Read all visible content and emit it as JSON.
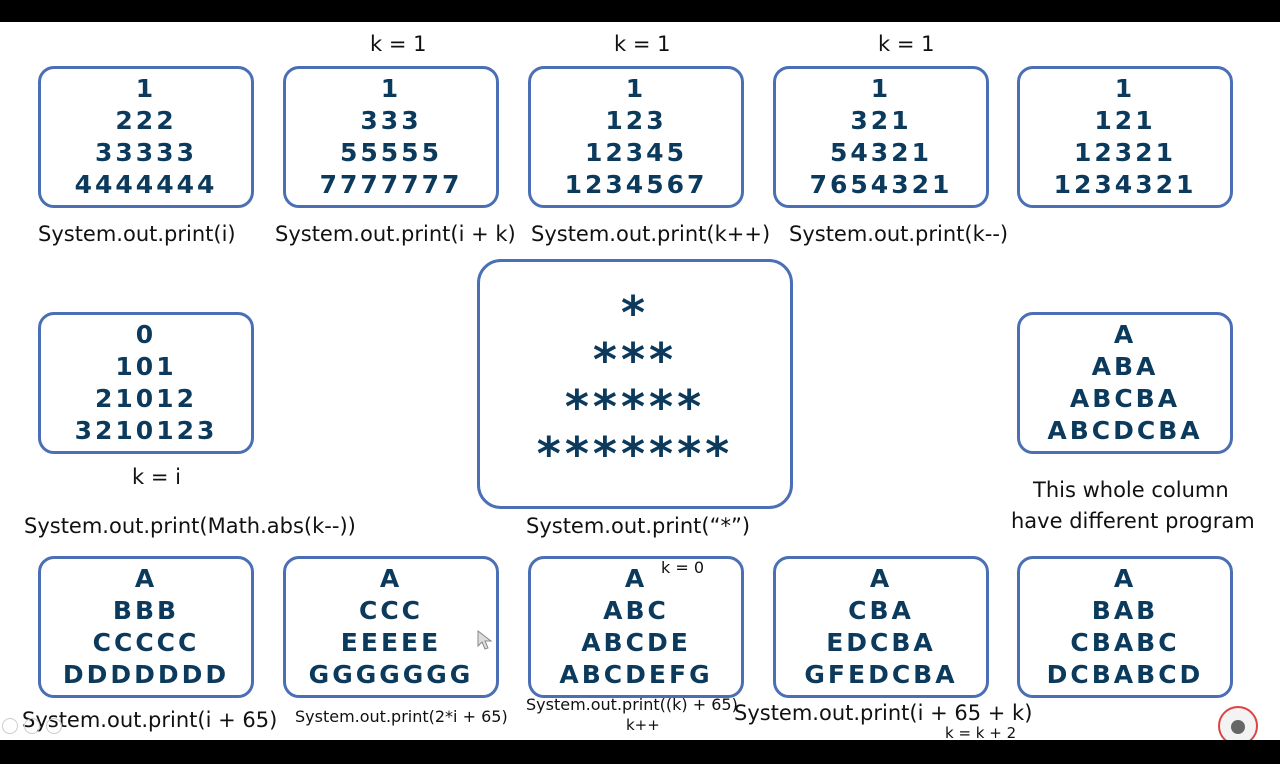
{
  "top_notes": {
    "k1": "k = 1",
    "k2": "k =  1",
    "k3": "k = 1"
  },
  "box1": {
    "rows": [
      "1",
      "222",
      "33333",
      "4444444"
    ],
    "label": "System.out.print(i)"
  },
  "box2": {
    "rows": [
      "1",
      "333",
      "55555",
      "7777777"
    ],
    "label": "System.out.print(i + k)"
  },
  "box3": {
    "rows": [
      "1",
      "123",
      "12345",
      "1234567"
    ],
    "label": "System.out.print(k++)"
  },
  "box4": {
    "rows": [
      "1",
      "321",
      "54321",
      "7654321"
    ],
    "label": "System.out.print(k--)"
  },
  "box5": {
    "rows": [
      "1",
      "121",
      "12321",
      "1234321"
    ]
  },
  "box6": {
    "rows": [
      "0",
      "101",
      "21012",
      "3210123"
    ],
    "note": "k = i",
    "label": "System.out.print(Math.abs(k--))"
  },
  "box_star": {
    "rows": [
      "*",
      "***",
      "*****",
      "*******"
    ],
    "label": "System.out.print(“*”)"
  },
  "box7": {
    "rows": [
      "A",
      "ABA",
      "ABCBA",
      "ABCDCBA"
    ],
    "note_line1": "This whole column",
    "note_line2": "have different program"
  },
  "box8": {
    "rows": [
      "A",
      "BBB",
      "CCCCC",
      "DDDDDDD"
    ],
    "label": "System.out.print(i + 65)"
  },
  "box9": {
    "rows": [
      "A",
      "CCC",
      "EEEEE",
      "GGGGGGG"
    ],
    "label": "System.out.print(2*i + 65)"
  },
  "box10": {
    "rows": [
      "A",
      "ABC",
      "ABCDE",
      "ABCDEFG"
    ],
    "note": "k = 0",
    "label": "System.out.print((k) + 65)",
    "label2": "k++"
  },
  "box11": {
    "rows": [
      "A",
      "CBA",
      "EDCBA",
      "GFEDCBA"
    ],
    "label": "System.out.print(i + 65 + k)",
    "label2": "k = k + 2"
  },
  "box12": {
    "rows": [
      "A",
      "BAB",
      "CBABC",
      "DCBABCD"
    ]
  },
  "colors": {
    "border": "#4a6fb5",
    "text": "#0b3a5c"
  }
}
